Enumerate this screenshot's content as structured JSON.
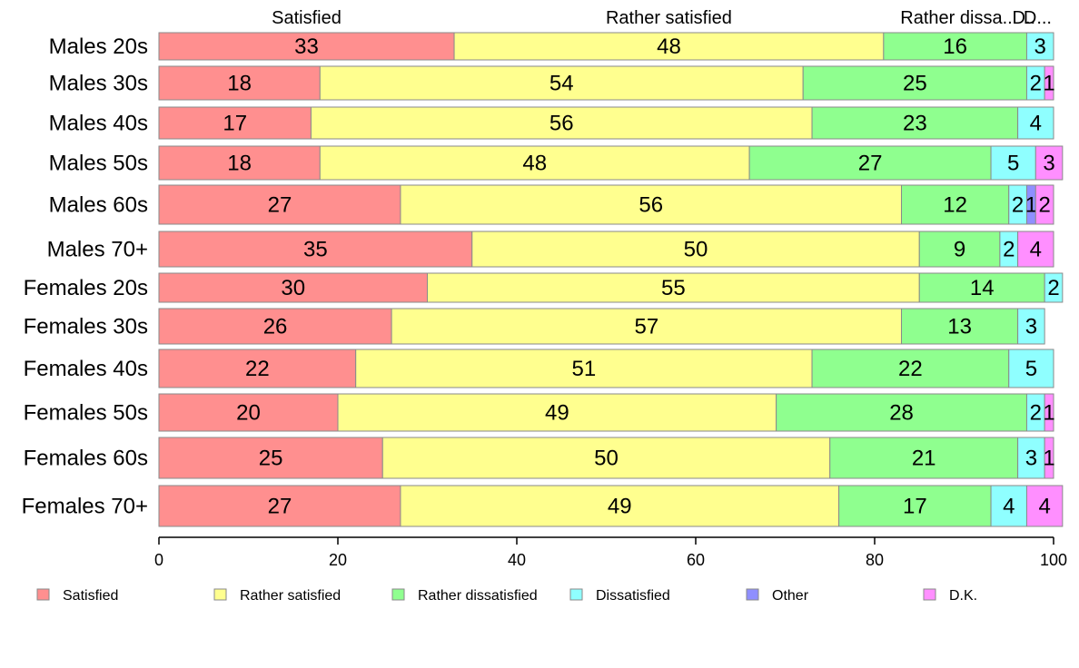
{
  "chart_data": {
    "type": "bar",
    "orientation": "horizontal",
    "stacked": true,
    "categories": [
      "Males 20s",
      "Males 30s",
      "Males 40s",
      "Males 50s",
      "Males 60s",
      "Males 70+",
      "Females 20s",
      "Females 30s",
      "Females 40s",
      "Females 50s",
      "Females 60s",
      "Females 70+"
    ],
    "series": [
      {
        "name": "Satisfied",
        "color": "#ff8f8f",
        "values": [
          33,
          18,
          17,
          18,
          27,
          35,
          30,
          26,
          22,
          20,
          25,
          27
        ]
      },
      {
        "name": "Rather satisfied",
        "color": "#ffff8f",
        "values": [
          48,
          54,
          56,
          48,
          56,
          50,
          55,
          57,
          51,
          49,
          50,
          49
        ]
      },
      {
        "name": "Rather dissatisfied",
        "color": "#8fff8f",
        "values": [
          16,
          25,
          23,
          27,
          12,
          9,
          14,
          13,
          22,
          28,
          21,
          17
        ]
      },
      {
        "name": "Dissatisfied",
        "color": "#8fffff",
        "values": [
          3,
          2,
          4,
          5,
          2,
          2,
          2,
          3,
          5,
          2,
          3,
          4
        ]
      },
      {
        "name": "Other",
        "color": "#8f8fff",
        "values": [
          0,
          0,
          0,
          0,
          1,
          0,
          0,
          0,
          0,
          0,
          0,
          0
        ]
      },
      {
        "name": "D.K.",
        "color": "#ff8fff",
        "values": [
          0,
          1,
          0,
          3,
          2,
          4,
          0,
          0,
          0,
          1,
          1,
          4
        ]
      }
    ],
    "top_labels": [
      "Satisfied",
      "Rather satisfied",
      "Rather dissa..",
      "D..",
      "D..."
    ],
    "xlim": [
      0,
      100
    ],
    "xticks": [
      0,
      20,
      40,
      60,
      80,
      100
    ],
    "legend_position": "bottom",
    "grid": false
  }
}
